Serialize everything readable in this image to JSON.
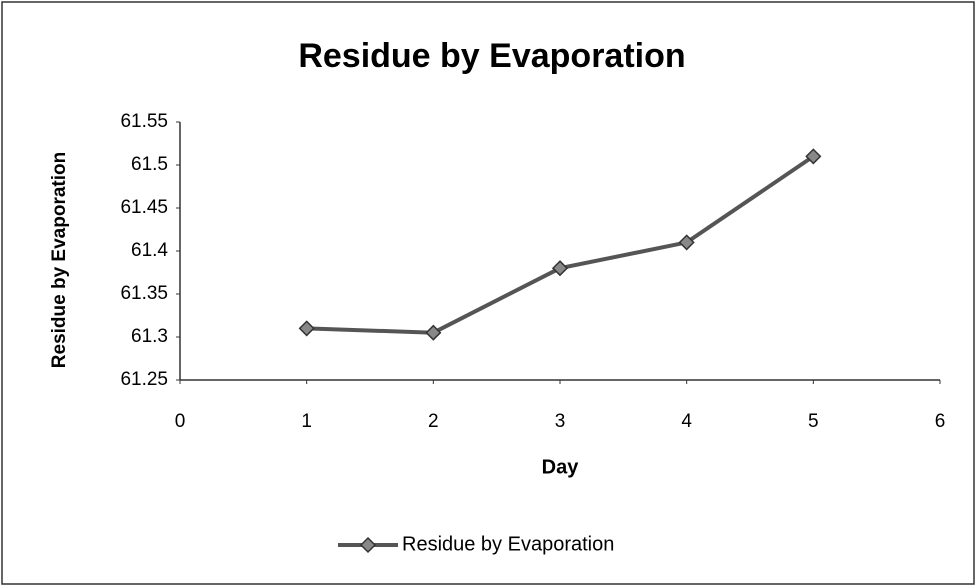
{
  "chart_data": {
    "type": "line",
    "title": "Residue by Evaporation",
    "x_label": "Day",
    "y_label": "Residue by Evaporation",
    "x": [
      1,
      2,
      3,
      4,
      5
    ],
    "series": [
      {
        "name": "Residue by Evaporation",
        "color": "#555555",
        "values": [
          61.31,
          61.305,
          61.38,
          61.41,
          61.51
        ]
      }
    ],
    "xlim": [
      0,
      6
    ],
    "xticks": [
      0,
      1,
      2,
      3,
      4,
      5,
      6
    ],
    "ylim": [
      61.25,
      61.55
    ],
    "yticks": [
      61.25,
      61.3,
      61.35,
      61.4,
      61.45,
      61.5,
      61.55
    ],
    "grid": false,
    "legend": "bottom"
  }
}
